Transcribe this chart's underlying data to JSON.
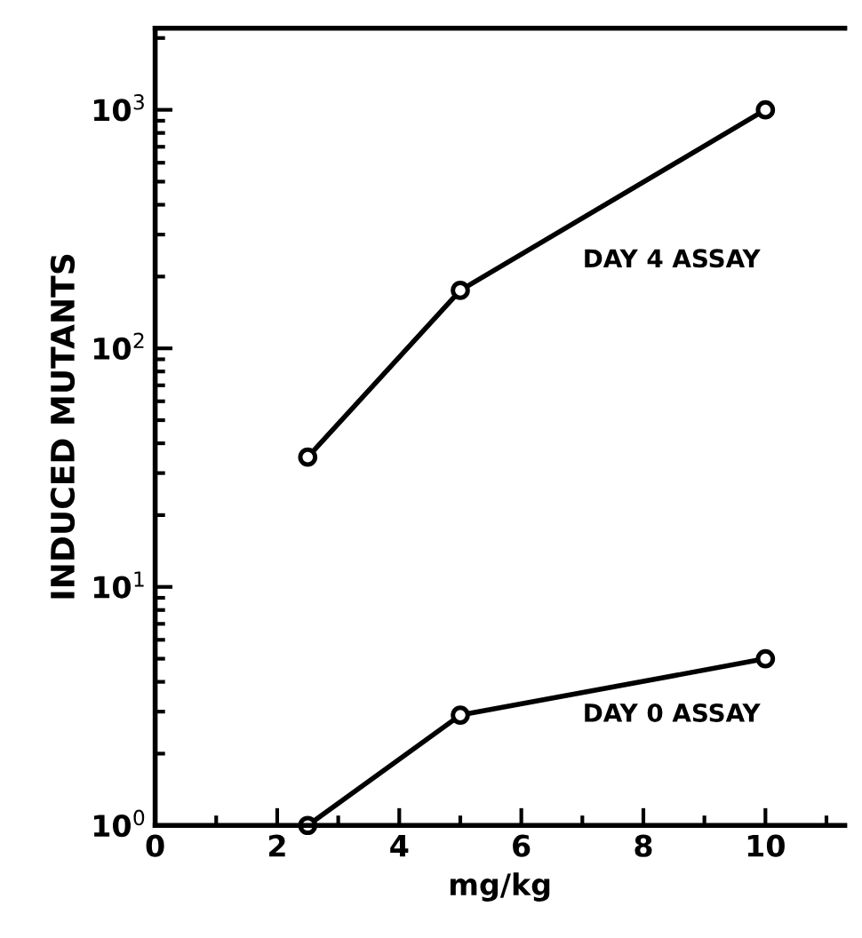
{
  "chart_data": {
    "type": "line",
    "xlabel": "mg/kg",
    "ylabel": "INDUCED MUTANTS",
    "log": "y",
    "xlim": [
      0,
      11.3
    ],
    "ylim": [
      1,
      2200
    ],
    "xticks": [
      0,
      2,
      4,
      6,
      8,
      10
    ],
    "yticks": [
      {
        "value": 1,
        "label": "10$^{0}$"
      },
      {
        "value": 10,
        "label": "10$^{1}$"
      },
      {
        "value": 100,
        "label": "10$^{2}$"
      },
      {
        "value": 1000,
        "label": "10$^{3}$"
      }
    ],
    "grid": false,
    "legend": false,
    "marker": "circle",
    "line_style": "solid",
    "series": [
      {
        "name": "DAY 4 ASSAY",
        "color": "#000000",
        "x": [
          2.5,
          5,
          10
        ],
        "values": [
          35,
          175,
          1000
        ]
      },
      {
        "name": "DAY 0 ASSAY",
        "color": "#000000",
        "x": [
          2.5,
          5,
          10
        ],
        "values": [
          1,
          2.9,
          5.0
        ]
      }
    ]
  }
}
